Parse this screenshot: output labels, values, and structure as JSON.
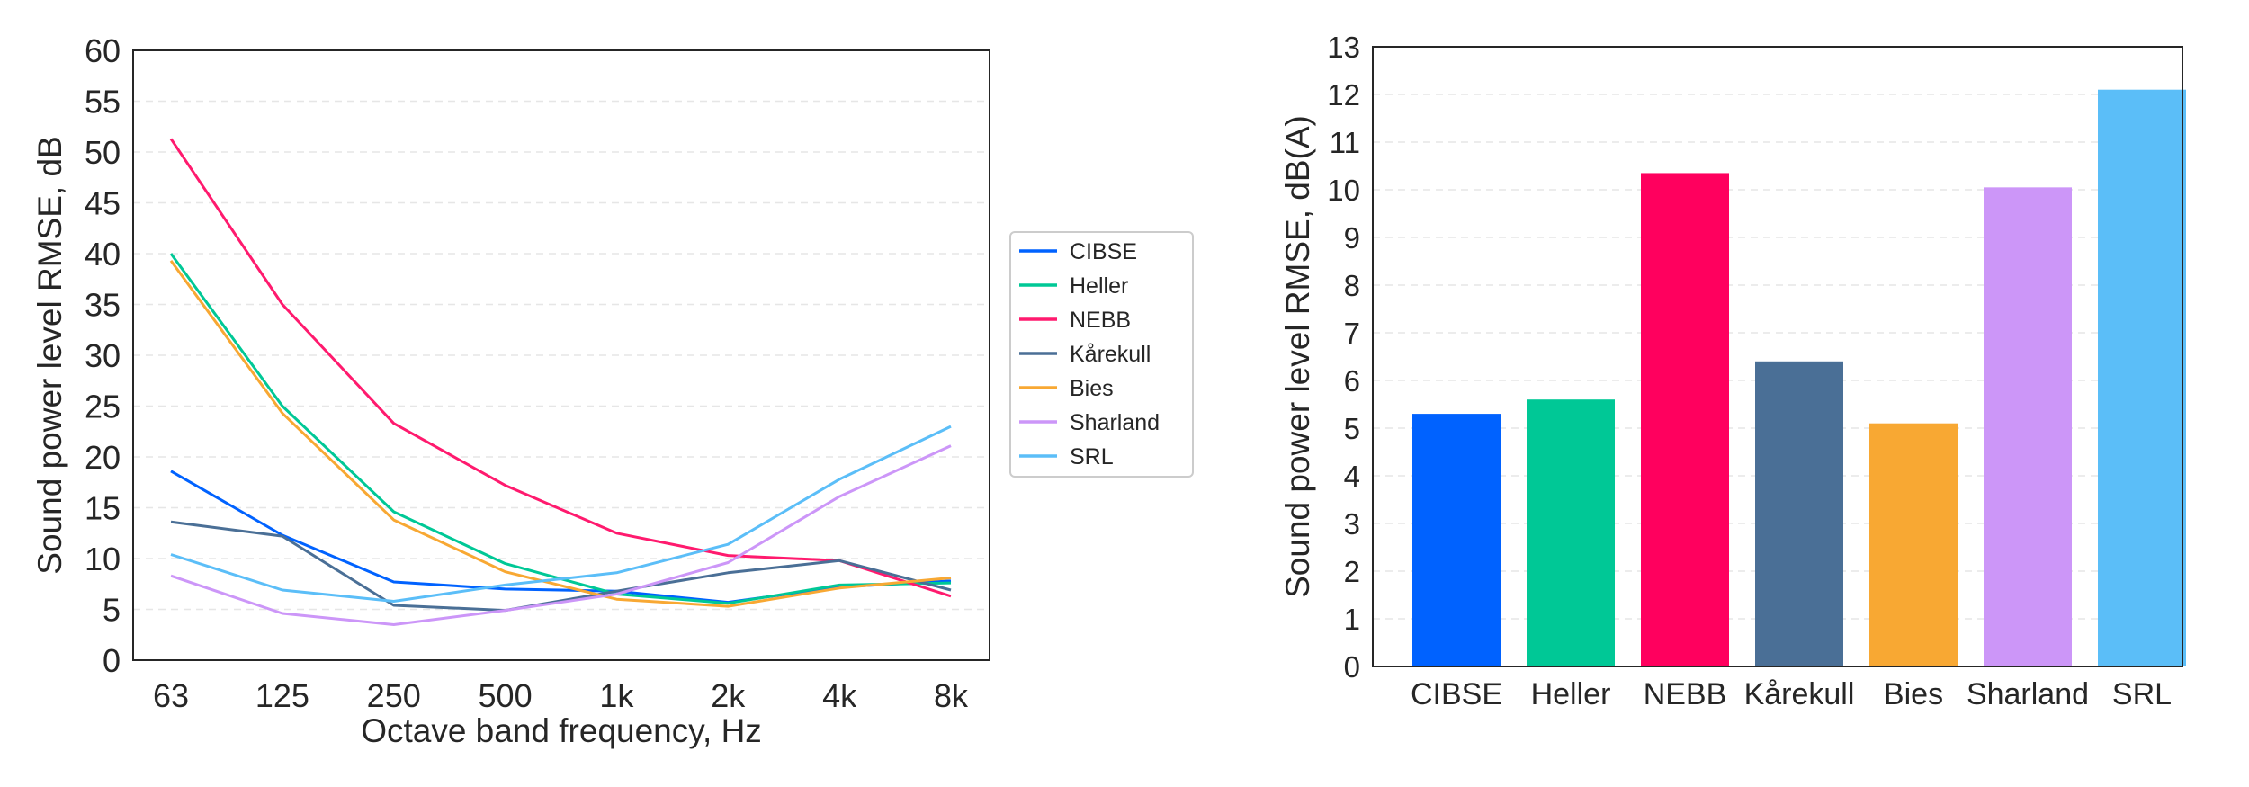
{
  "chart_data": [
    {
      "type": "line",
      "xlabel": "Octave band frequency, Hz",
      "ylabel": "Sound power level RMSE, dB",
      "categories": [
        "63",
        "125",
        "250",
        "500",
        "1k",
        "2k",
        "4k",
        "8k"
      ],
      "ylim": [
        0,
        60
      ],
      "yticks": [
        0,
        5,
        10,
        15,
        20,
        25,
        30,
        35,
        40,
        45,
        50,
        55,
        60
      ],
      "grid": "horizontal dashed",
      "legend": "right, outside",
      "series": [
        {
          "name": "CIBSE",
          "color": "#0062ff",
          "values": [
            18.6,
            12.3,
            7.7,
            7.0,
            6.8,
            5.7,
            7.2,
            7.8
          ]
        },
        {
          "name": "Heller",
          "color": "#00c896",
          "values": [
            40.0,
            25.0,
            14.6,
            9.5,
            6.5,
            5.6,
            7.4,
            7.6
          ]
        },
        {
          "name": "NEBB",
          "color": "#ff1a6e",
          "values": [
            51.3,
            35.0,
            23.3,
            17.2,
            12.5,
            10.3,
            9.8,
            6.3
          ]
        },
        {
          "name": "Kårekull",
          "color": "#4a6f96",
          "values": [
            13.6,
            12.2,
            5.4,
            4.9,
            6.8,
            8.6,
            9.8,
            6.9
          ]
        },
        {
          "name": "Bies",
          "color": "#f8a833",
          "values": [
            39.3,
            24.3,
            13.8,
            8.7,
            6.0,
            5.3,
            7.1,
            8.1
          ]
        },
        {
          "name": "Sharland",
          "color": "#cc96f8",
          "values": [
            8.3,
            4.6,
            3.5,
            4.9,
            6.5,
            9.6,
            16.1,
            21.1
          ]
        },
        {
          "name": "SRL",
          "color": "#5bbef8",
          "values": [
            10.4,
            6.9,
            5.8,
            7.4,
            8.6,
            11.4,
            17.8,
            23.0
          ]
        }
      ]
    },
    {
      "type": "bar",
      "xlabel": "",
      "ylabel": "Sound power level RMSE, dB(A)",
      "categories": [
        "CIBSE",
        "Heller",
        "NEBB",
        "Kårekull",
        "Bies",
        "Sharland",
        "SRL"
      ],
      "values": [
        5.3,
        5.6,
        10.35,
        6.4,
        5.1,
        10.05,
        12.1
      ],
      "colors": [
        "#0062ff",
        "#00c896",
        "#ff005e",
        "#4a6f96",
        "#f8a833",
        "#cc96f8",
        "#5bbef8"
      ],
      "ylim": [
        0,
        13
      ],
      "yticks": [
        0,
        1,
        2,
        3,
        4,
        5,
        6,
        7,
        8,
        9,
        10,
        11,
        12,
        13
      ],
      "grid": "horizontal dashed",
      "legend": "none"
    }
  ]
}
